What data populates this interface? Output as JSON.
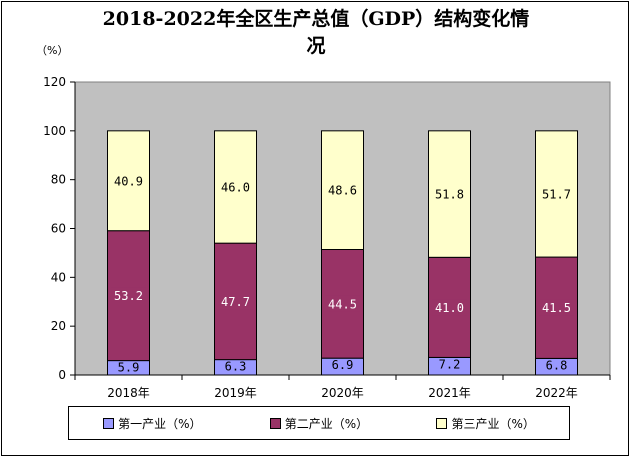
{
  "title": "2018-2022年全区生产总值（GDP）结构变化情况",
  "title_line1": "2018-2022年全区生产总值（GDP）结构变化情",
  "title_line2": "况",
  "unit": "（%）",
  "colors": {
    "plot_bg": "#c0c0c0",
    "primary": "#9999ff",
    "secondary": "#993366",
    "tertiary": "#ffffcc"
  },
  "chart_data": {
    "type": "bar",
    "stacked": true,
    "title": "2018-2022年全区生产总值（GDP）结构变化情况",
    "ylabel": "（%）",
    "ylim": [
      0,
      120
    ],
    "yticks": [
      0,
      20,
      40,
      60,
      80,
      100,
      120
    ],
    "grid": false,
    "legend": "bottom",
    "categories": [
      "2018年",
      "2019年",
      "2020年",
      "2021年",
      "2022年"
    ],
    "series": [
      {
        "name": "第一产业（%）",
        "values": [
          5.9,
          6.3,
          6.9,
          7.2,
          6.8
        ],
        "labels": [
          "5.9",
          "6.3",
          "6.9",
          "7.2",
          "6.8"
        ]
      },
      {
        "name": "第二产业（%）",
        "values": [
          53.2,
          47.7,
          44.5,
          41.0,
          41.5
        ],
        "labels": [
          "53.2",
          "47.7",
          "44.5",
          "41.0",
          "41.5"
        ]
      },
      {
        "name": "第三产业（%）",
        "values": [
          40.9,
          46.0,
          48.6,
          51.8,
          51.7
        ],
        "labels": [
          "40.9",
          "46.0",
          "48.6",
          "51.8",
          "51.7"
        ]
      }
    ]
  }
}
